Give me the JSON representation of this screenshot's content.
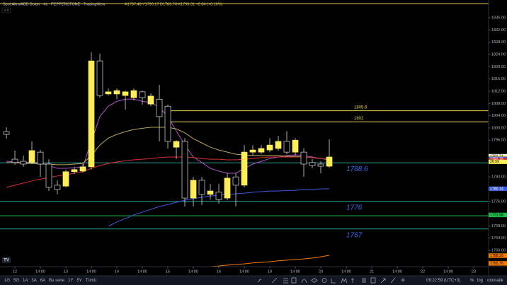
{
  "chart_data": {
    "type": "candlestick",
    "title": "Spot Altın/ABD Doları · 4s · PEPPERSTONE · TradingView",
    "ohlc_text": "A1787.48 Y1796.17 D1786.74 K1790.31 +2.84 (+0.16%)",
    "x": [
      0,
      1,
      2,
      3,
      4,
      5,
      6,
      7,
      8,
      9,
      10,
      11,
      12,
      13,
      14,
      15,
      16,
      17,
      18,
      19,
      20,
      21,
      22,
      23,
      24,
      25,
      26,
      27,
      28,
      29,
      30,
      31,
      32,
      33,
      34,
      35,
      36,
      37,
      38
    ],
    "open": [
      1798.8,
      1789.8,
      1789.1,
      1788.7,
      1792.1,
      1788.2,
      1781.3,
      1781.0,
      1785.7,
      1785.9,
      1787.3,
      1821.9,
      1811.1,
      1811.1,
      1810.6,
      1809.9,
      1811.8,
      1807.8,
      1809.4,
      1807.1,
      1793.7,
      1795.6,
      1777.1,
      1782.9,
      1778.3,
      1779.0,
      1777.1,
      1784.0,
      1781.3,
      1792.1,
      1792.1,
      1792.8,
      1793.3,
      1795.6,
      1792.1,
      1792.1,
      1788.7,
      1788.2,
      1787.5
    ],
    "high": [
      1800.2,
      1792.6,
      1791.0,
      1795.6,
      1792.8,
      1789.8,
      1782.9,
      1786.4,
      1787.3,
      1788.2,
      1824.7,
      1824.2,
      1812.9,
      1812.9,
      1812.2,
      1812.9,
      1812.2,
      1811.3,
      1814.1,
      1807.6,
      1796.0,
      1796.7,
      1784.0,
      1784.0,
      1781.7,
      1781.7,
      1785.2,
      1785.2,
      1794.4,
      1794.4,
      1794.4,
      1796.7,
      1797.4,
      1799.0,
      1796.7,
      1793.3,
      1789.8,
      1789.1,
      1796.3
    ],
    "low": [
      1796.5,
      1788.0,
      1787.3,
      1788.2,
      1784.0,
      1779.4,
      1778.3,
      1780.6,
      1785.0,
      1785.4,
      1786.4,
      1809.9,
      1810.6,
      1809.4,
      1806.0,
      1809.0,
      1807.6,
      1807.1,
      1795.6,
      1793.3,
      1789.8,
      1774.3,
      1774.3,
      1774.8,
      1776.6,
      1775.3,
      1776.4,
      1774.3,
      1780.6,
      1791.0,
      1791.4,
      1792.1,
      1792.6,
      1791.4,
      1791.0,
      1784.0,
      1786.8,
      1785.2,
      1787.0
    ],
    "close": [
      1797.9,
      1788.7,
      1788.2,
      1792.6,
      1788.2,
      1780.6,
      1779.9,
      1785.7,
      1786.4,
      1787.3,
      1821.9,
      1810.6,
      1811.8,
      1812.2,
      1811.8,
      1812.2,
      1809.9,
      1810.4,
      1803.7,
      1795.6,
      1795.6,
      1777.1,
      1782.9,
      1778.3,
      1779.4,
      1776.6,
      1783.6,
      1781.3,
      1792.1,
      1792.8,
      1793.3,
      1794.4,
      1795.6,
      1792.1,
      1796.0,
      1788.2,
      1787.7,
      1787.5,
      1790.5
    ],
    "up_color": "#ffee58",
    "down_color": "#000000",
    "wick_color": "#d8d8d8",
    "series": [
      {
        "color": "#b04fc8",
        "values": [
          1789.1,
          1788.9,
          1788.7,
          1788.9,
          1788.7,
          1787.7,
          1786.8,
          1786.8,
          1787.0,
          1787.3,
          1795.6,
          1803.7,
          1807.1,
          1808.7,
          1809.4,
          1809.4,
          1808.7,
          1808.3,
          1806.7,
          1803.7,
          1799.0,
          1794.4,
          1790.5,
          1788.7,
          1786.8,
          1785.9,
          1785.2,
          1785.2,
          1786.8,
          1788.2,
          1789.1,
          1790.0,
          1790.5,
          1791.0,
          1791.2,
          1791.0,
          1790.5,
          1790.0,
          1789.6
        ]
      },
      {
        "color": "#b8a65a",
        "values": [
          1788.7,
          1788.7,
          1788.4,
          1788.4,
          1788.2,
          1788.2,
          1788.0,
          1788.0,
          1788.2,
          1788.4,
          1791.0,
          1794.4,
          1796.7,
          1797.9,
          1798.8,
          1799.5,
          1799.9,
          1800.2,
          1800.2,
          1800.2,
          1799.7,
          1798.4,
          1796.5,
          1795.1,
          1793.7,
          1792.8,
          1792.1,
          1791.4,
          1791.2,
          1791.0,
          1791.0,
          1791.0,
          1791.0,
          1790.7,
          1790.7,
          1790.5,
          1790.3,
          1790.0,
          1789.8
        ]
      },
      {
        "color": "#d32f2f",
        "values": [
          1780.6,
          1781.3,
          1782.0,
          1782.7,
          1783.3,
          1783.8,
          1784.3,
          1784.7,
          1785.2,
          1785.7,
          1786.8,
          1787.7,
          1788.4,
          1788.9,
          1789.3,
          1789.6,
          1789.8,
          1790.0,
          1790.3,
          1790.5,
          1790.5,
          1790.5,
          1790.3,
          1790.0,
          1789.8,
          1789.8,
          1789.6,
          1789.6,
          1789.8,
          1790.0,
          1790.3,
          1790.5,
          1790.5,
          1790.5,
          1790.5,
          1790.5,
          1790.3,
          1790.0,
          1789.8
        ]
      },
      {
        "color": "#3b5bdb",
        "values": [
          null,
          null,
          null,
          null,
          null,
          null,
          null,
          null,
          null,
          null,
          null,
          null,
          1767.9,
          1769.3,
          1770.4,
          1771.6,
          1772.5,
          1773.4,
          1774.3,
          1775.0,
          1775.7,
          1776.4,
          1776.9,
          1777.3,
          1777.8,
          1778.0,
          1778.3,
          1778.5,
          1778.7,
          1779.0,
          1779.2,
          1779.4,
          1779.4,
          1779.6,
          1779.6,
          1779.9,
          1779.9,
          1780.1,
          1780.1
        ]
      },
      {
        "color": "#f57c00",
        "values": [
          null,
          null,
          null,
          null,
          null,
          null,
          null,
          null,
          null,
          null,
          null,
          null,
          null,
          null,
          null,
          null,
          null,
          null,
          null,
          null,
          null,
          null,
          null,
          null,
          1754.7,
          1754.9,
          1755.2,
          1755.4,
          1755.6,
          1755.9,
          1756.1,
          1756.3,
          1756.6,
          1756.8,
          1757.0,
          1757.2,
          1757.5,
          1757.9,
          1758.4
        ]
      }
    ],
    "levels": [
      {
        "value": 1840.6,
        "color": "#e8d44d",
        "labeled": false
      },
      {
        "value": 1805.6,
        "color": "#e8d44d",
        "from": 19,
        "labeled": true
      },
      {
        "value": 1802,
        "color": "#e8d44d",
        "from": 19,
        "labeled": true
      },
      {
        "value": 1788.6,
        "color": "#2aa198",
        "labeled": true
      },
      {
        "value": 1776,
        "color": "#2aa198",
        "labeled": true
      },
      {
        "value": 1771.3,
        "color": "#1fbf4b",
        "labeled": false
      },
      {
        "value": 1767,
        "color": "#2aa198",
        "labeled": true
      }
    ],
    "price_tags": [
      {
        "value": 1790.74,
        "label": "1790.74",
        "color": "#ffffff",
        "text_color": "#000000"
      },
      {
        "value": 1790.31,
        "label": "1790.31",
        "color": "#ffee58",
        "text_color": "#000000"
      },
      {
        "value": 1789.9,
        "label": "1789.90",
        "color": "#3b5bdb",
        "text_color": "#ffffff"
      },
      {
        "value": 1789.48,
        "label": "1789.48",
        "color": "#d32f2f",
        "text_color": "#ffffff"
      },
      {
        "value": 1780.14,
        "label": "1780.14",
        "color": "#3b5bdb",
        "text_color": "#ffffff"
      },
      {
        "value": 1771.58,
        "label": "1771.58",
        "color": "#1fbf4b",
        "text_color": "#000000"
      },
      {
        "value": 1758.29,
        "label": "1758.29",
        "color": "#f57c00",
        "text_color": "#000000"
      },
      {
        "value": 1755.76,
        "label": "1755.76",
        "color": "#f57c00",
        "text_color": "#000000"
      }
    ],
    "countdown": "26:59",
    "xlim": [
      -0.75,
      56.75
    ],
    "ylim": [
      1754.7,
      1841.8
    ],
    "yticks": [
      {
        "value": 1836,
        "label": "1836.00"
      },
      {
        "value": 1832,
        "label": "1832.00"
      },
      {
        "value": 1828,
        "label": "1828.00"
      },
      {
        "value": 1824,
        "label": "1824.00"
      },
      {
        "value": 1820,
        "label": "1820.00"
      },
      {
        "value": 1816,
        "label": "1816.00"
      },
      {
        "value": 1812,
        "label": "1812.00"
      },
      {
        "value": 1808,
        "label": "1808.00"
      },
      {
        "value": 1804,
        "label": "1804.00"
      },
      {
        "value": 1800,
        "label": "1800.00"
      },
      {
        "value": 1796,
        "label": "1796.00"
      },
      {
        "value": 1784,
        "label": "1784.00"
      },
      {
        "value": 1776,
        "label": "1776.00"
      },
      {
        "value": 1768,
        "label": "1768.00"
      },
      {
        "value": 1764,
        "label": "1764.00"
      },
      {
        "value": 1760,
        "label": "1760.00"
      }
    ],
    "xticks": [
      {
        "value": 1,
        "label": "12"
      },
      {
        "value": 4,
        "label": "14:00"
      },
      {
        "value": 7,
        "label": "13"
      },
      {
        "value": 10,
        "label": "14:00"
      },
      {
        "value": 13,
        "label": "14"
      },
      {
        "value": 16,
        "label": "14:00"
      },
      {
        "value": 19,
        "label": "15"
      },
      {
        "value": 22,
        "label": "14:00"
      },
      {
        "value": 25,
        "label": "16"
      },
      {
        "value": 28,
        "label": "14:00"
      },
      {
        "value": 31,
        "label": "19"
      },
      {
        "value": 34,
        "label": "14:00"
      },
      {
        "value": 37,
        "label": "20"
      },
      {
        "value": 40,
        "label": "14:00"
      },
      {
        "value": 43,
        "label": "21"
      },
      {
        "value": 46,
        "label": "14:00"
      },
      {
        "value": 49,
        "label": "22"
      },
      {
        "value": 52,
        "label": "14:00"
      },
      {
        "value": 55,
        "label": "23"
      }
    ],
    "grid": false
  },
  "toolbar": {
    "ranges": [
      "1G",
      "5G",
      "1A",
      "3A",
      "6A",
      "Bu sene",
      "1Y",
      "5Y",
      "Tümü"
    ],
    "clock": "09:22:59 (UTC+3)",
    "options": [
      "%",
      "log",
      "otomatik"
    ]
  }
}
